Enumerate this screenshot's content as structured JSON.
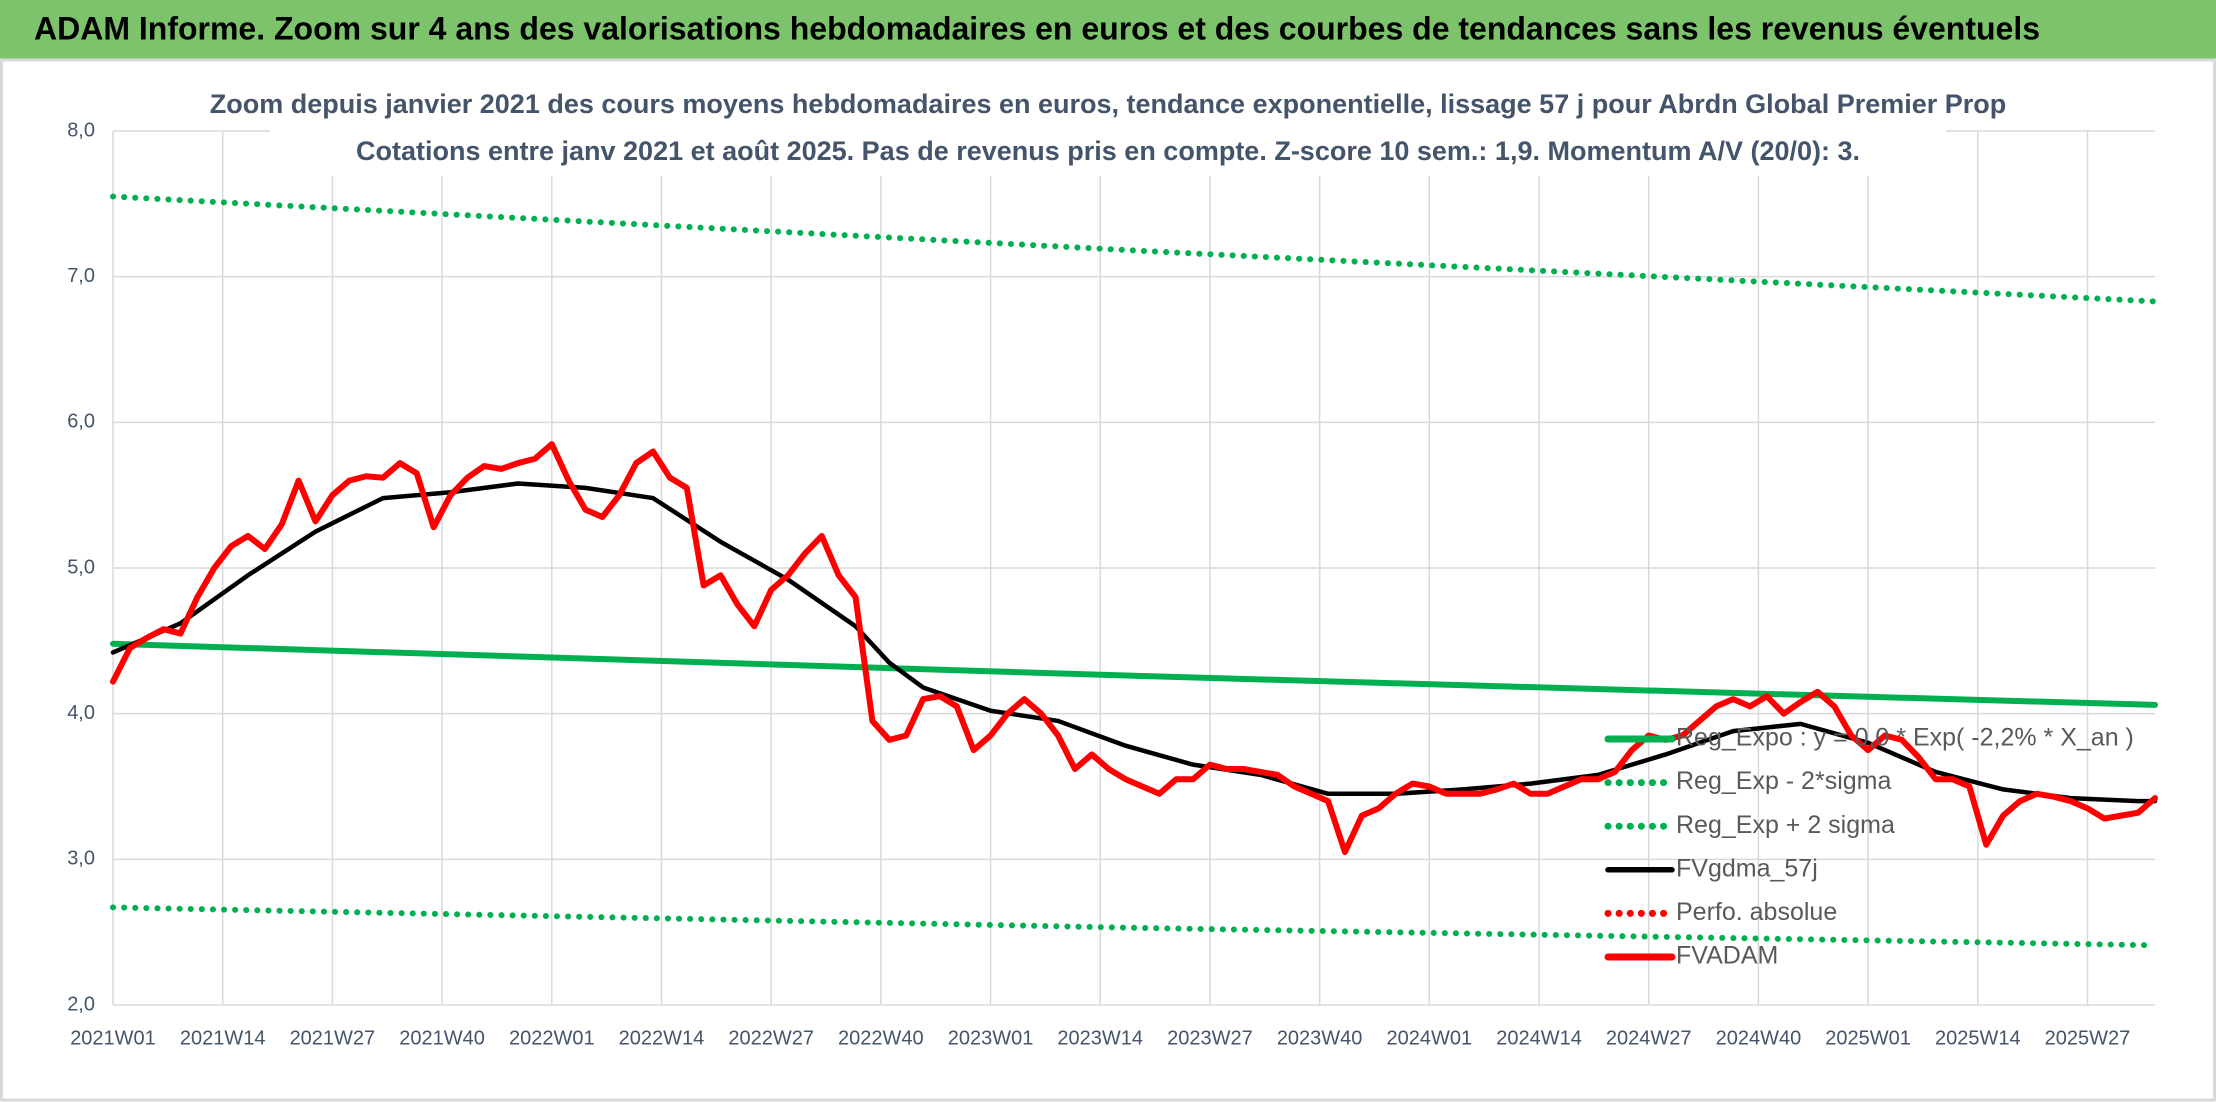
{
  "header": {
    "title": "ADAM Informe. Zoom sur 4 ans des valorisations hebdomadaires en euros et des courbes de tendances sans les revenus éventuels"
  },
  "chart_data": {
    "type": "line",
    "title": "Zoom depuis janvier 2021 des cours moyens hebdomadaires en euros, tendance exponentielle, lissage 57 j pour Abrdn Global Premier Prop",
    "subtitle": "Cotations entre janv 2021 et août 2025. Pas de revenus pris en compte. Z-score 10 sem.: 1,9. Momentum A/V (20/0): 3.",
    "xlim": [
      0,
      242
    ],
    "xticks": [
      {
        "value": 0,
        "label": "2021W01"
      },
      {
        "value": 13,
        "label": "2021W14"
      },
      {
        "value": 26,
        "label": "2021W27"
      },
      {
        "value": 39,
        "label": "2021W40"
      },
      {
        "value": 52,
        "label": "2022W01"
      },
      {
        "value": 65,
        "label": "2022W14"
      },
      {
        "value": 78,
        "label": "2022W27"
      },
      {
        "value": 91,
        "label": "2022W40"
      },
      {
        "value": 104,
        "label": "2023W01"
      },
      {
        "value": 117,
        "label": "2023W14"
      },
      {
        "value": 130,
        "label": "2023W27"
      },
      {
        "value": 143,
        "label": "2023W40"
      },
      {
        "value": 156,
        "label": "2024W01"
      },
      {
        "value": 169,
        "label": "2024W14"
      },
      {
        "value": 182,
        "label": "2024W27"
      },
      {
        "value": 195,
        "label": "2024W40"
      },
      {
        "value": 208,
        "label": "2025W01"
      },
      {
        "value": 221,
        "label": "2025W14"
      },
      {
        "value": 234,
        "label": "2025W27"
      }
    ],
    "ylim": [
      2,
      8
    ],
    "yticks": [
      {
        "value": 2,
        "label": "2,0"
      },
      {
        "value": 3,
        "label": "3,0"
      },
      {
        "value": 4,
        "label": "4,0"
      },
      {
        "value": 5,
        "label": "5,0"
      },
      {
        "value": 6,
        "label": "6,0"
      },
      {
        "value": 7,
        "label": "7,0"
      },
      {
        "value": 8,
        "label": "8,0"
      }
    ],
    "grid": true,
    "legend": "right",
    "series": [
      {
        "name": "Reg_Expo : y = 0,0 * Exp( -2,2% *  X_an )",
        "color": "#00b050",
        "style": "thick",
        "x": [
          0,
          121,
          242
        ],
        "values": [
          4.48,
          4.26,
          4.06
        ]
      },
      {
        "name": "Reg_Exp - 2*sigma",
        "color": "#00b050",
        "style": "dotted",
        "x": [
          0,
          121,
          242
        ],
        "values": [
          2.67,
          2.53,
          2.41
        ]
      },
      {
        "name": "Reg_Exp + 2 sigma",
        "color": "#00b050",
        "style": "dotted",
        "x": [
          0,
          121,
          242
        ],
        "values": [
          7.55,
          7.18,
          6.83
        ]
      },
      {
        "name": "FVgdma_57j",
        "color": "#000000",
        "style": "normal",
        "x": [
          0,
          8,
          16,
          24,
          32,
          40,
          48,
          56,
          64,
          72,
          80,
          88,
          92,
          96,
          104,
          112,
          120,
          128,
          136,
          144,
          152,
          160,
          168,
          176,
          184,
          192,
          200,
          208,
          216,
          224,
          232,
          240,
          242
        ],
        "values": [
          4.42,
          4.62,
          4.95,
          5.25,
          5.48,
          5.52,
          5.58,
          5.55,
          5.48,
          5.18,
          4.92,
          4.6,
          4.35,
          4.18,
          4.02,
          3.95,
          3.78,
          3.65,
          3.58,
          3.45,
          3.45,
          3.48,
          3.52,
          3.58,
          3.72,
          3.88,
          3.93,
          3.8,
          3.6,
          3.48,
          3.42,
          3.4,
          3.4
        ]
      },
      {
        "name": "Perfo. absolue",
        "color": "#ff0000",
        "style": "dotted",
        "x": [],
        "values": []
      },
      {
        "name": "FVADAM",
        "color": "#ff0000",
        "style": "thick",
        "x": [
          0,
          2,
          4,
          6,
          8,
          10,
          12,
          14,
          16,
          18,
          20,
          22,
          24,
          26,
          28,
          30,
          32,
          34,
          36,
          38,
          40,
          42,
          44,
          46,
          48,
          50,
          52,
          54,
          56,
          58,
          60,
          62,
          64,
          66,
          68,
          70,
          72,
          74,
          76,
          78,
          80,
          82,
          84,
          86,
          88,
          90,
          92,
          94,
          96,
          98,
          100,
          102,
          104,
          106,
          108,
          110,
          112,
          114,
          116,
          118,
          120,
          122,
          124,
          126,
          128,
          130,
          132,
          134,
          136,
          138,
          140,
          142,
          144,
          146,
          148,
          150,
          152,
          154,
          156,
          158,
          160,
          162,
          164,
          166,
          168,
          170,
          172,
          174,
          176,
          178,
          180,
          182,
          184,
          186,
          188,
          190,
          192,
          194,
          196,
          198,
          200,
          202,
          204,
          206,
          208,
          210,
          212,
          214,
          216,
          218,
          220,
          222,
          224,
          226,
          228,
          230,
          232,
          234,
          236,
          238,
          240,
          242
        ],
        "values": [
          4.22,
          4.45,
          4.52,
          4.58,
          4.55,
          4.8,
          5.0,
          5.15,
          5.22,
          5.13,
          5.3,
          5.6,
          5.32,
          5.5,
          5.6,
          5.63,
          5.62,
          5.72,
          5.65,
          5.28,
          5.5,
          5.62,
          5.7,
          5.68,
          5.72,
          5.75,
          5.85,
          5.6,
          5.4,
          5.35,
          5.5,
          5.72,
          5.8,
          5.62,
          5.55,
          4.88,
          4.95,
          4.75,
          4.6,
          4.85,
          4.95,
          5.1,
          5.22,
          4.95,
          4.8,
          3.95,
          3.82,
          3.85,
          4.1,
          4.12,
          4.05,
          3.75,
          3.85,
          4.0,
          4.1,
          4.0,
          3.85,
          3.62,
          3.72,
          3.62,
          3.55,
          3.5,
          3.45,
          3.55,
          3.55,
          3.65,
          3.62,
          3.62,
          3.6,
          3.58,
          3.5,
          3.45,
          3.4,
          3.05,
          3.3,
          3.35,
          3.45,
          3.52,
          3.5,
          3.45,
          3.45,
          3.45,
          3.48,
          3.52,
          3.45,
          3.45,
          3.5,
          3.55,
          3.55,
          3.6,
          3.75,
          3.85,
          3.82,
          3.85,
          3.95,
          4.05,
          4.1,
          4.05,
          4.12,
          4.0,
          4.08,
          4.15,
          4.05,
          3.85,
          3.75,
          3.85,
          3.82,
          3.7,
          3.55,
          3.55,
          3.5,
          3.1,
          3.3,
          3.4,
          3.45,
          3.43,
          3.4,
          3.35,
          3.28,
          3.3,
          3.32,
          3.42
        ]
      }
    ]
  }
}
